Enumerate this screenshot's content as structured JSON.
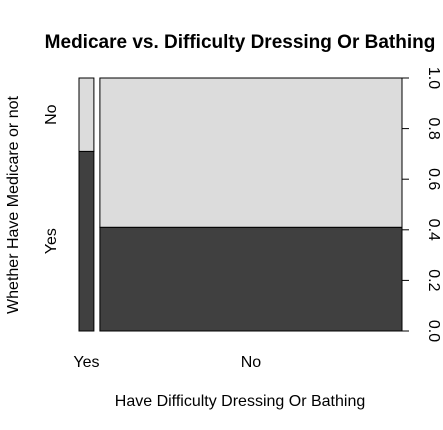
{
  "chart_data": {
    "type": "mosaic",
    "title": "Medicare vs. Difficulty Dressing Or Bathing",
    "xlabel": "Have Difficulty Dressing Or Bathing",
    "ylabel": "Whether Have Medicare or not",
    "x_categories": [
      "Yes",
      "No"
    ],
    "y_categories": [
      "Yes",
      "No"
    ],
    "x_widths": [
      0.047,
      0.953
    ],
    "columns": [
      {
        "x": "Yes",
        "proportions": {
          "Yes": 0.71,
          "No": 0.29
        }
      },
      {
        "x": "No",
        "proportions": {
          "Yes": 0.41,
          "No": 0.59
        }
      }
    ],
    "y_axis_ticks": [
      "0.0",
      "0.2",
      "0.4",
      "0.6",
      "0.8",
      "1.0"
    ],
    "y_axis_side": "right",
    "colors": {
      "Yes": "#404040",
      "No": "#dcdcdc"
    }
  }
}
